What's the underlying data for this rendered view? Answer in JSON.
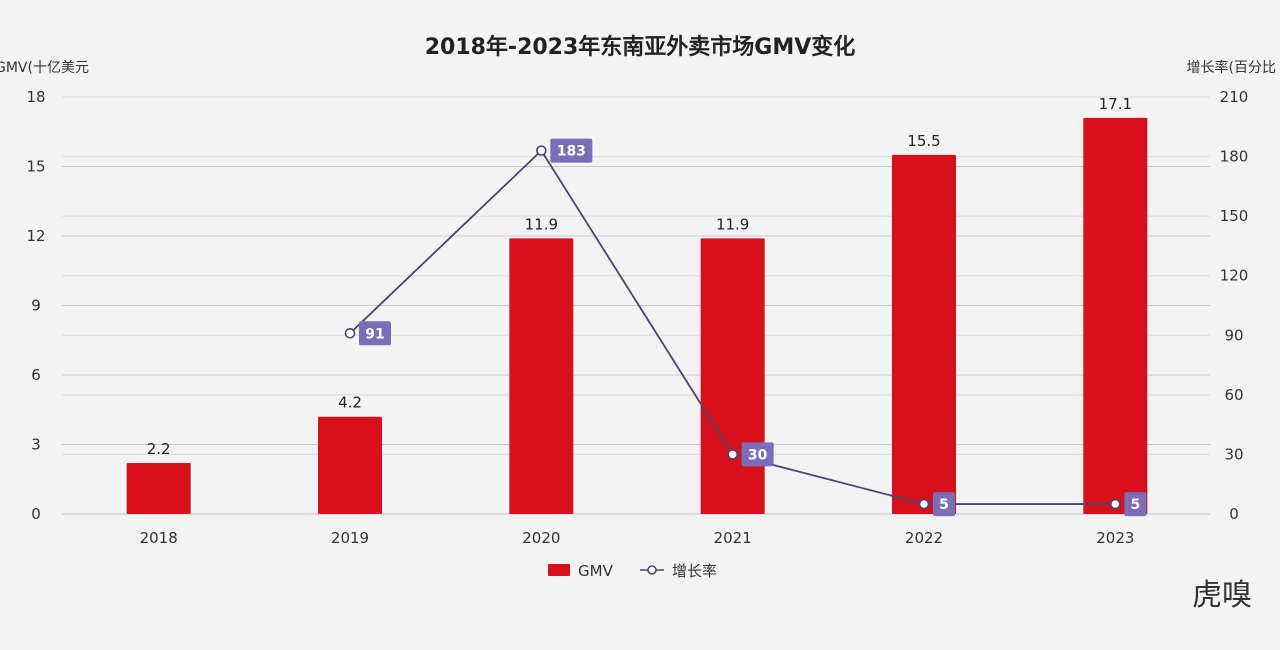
{
  "chart_data": {
    "type": "bar",
    "title": "2018年-2023年东南亚外卖市场GMV变化",
    "categories": [
      "2018",
      "2019",
      "2020",
      "2021",
      "2022",
      "2023"
    ],
    "series": [
      {
        "name": "GMV",
        "type": "bar",
        "axis": "left",
        "color": "#d8101c",
        "values": [
          2.2,
          4.2,
          11.9,
          11.9,
          15.5,
          17.1
        ]
      },
      {
        "name": "增长率",
        "type": "line",
        "axis": "right",
        "color": "#4a4470",
        "values": [
          null,
          91,
          183,
          30,
          5,
          5
        ]
      }
    ],
    "ylabel_left": "GMV(十亿美元",
    "ylabel_right": "增长率(百分比",
    "ylim_left": [
      0,
      18
    ],
    "yticks_left": [
      "0",
      "3",
      "6",
      "9",
      "12",
      "15",
      "18"
    ],
    "ylim_right": [
      0,
      210
    ],
    "yticks_right": [
      "0",
      "30",
      "60",
      "90",
      "120",
      "150",
      "180",
      "210"
    ],
    "grid": true,
    "legend_position": "bottom-center",
    "label_box_color": "#7b6db8"
  },
  "watermark": "虎嗅"
}
